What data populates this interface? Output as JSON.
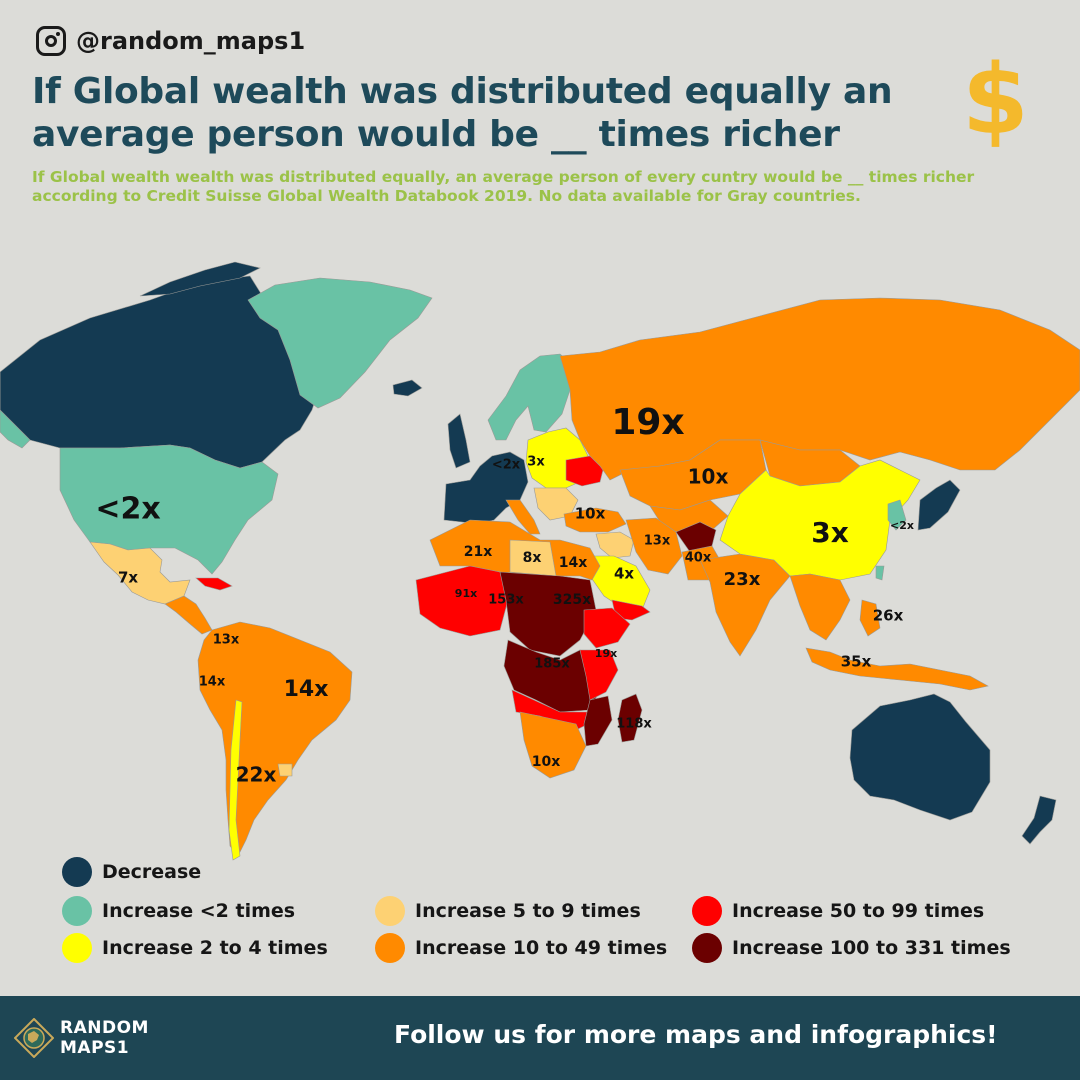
{
  "header": {
    "handle": "@random_maps1",
    "title_line1": "If Global wealth was distributed equally an",
    "title_line2": "average person would be __ times richer",
    "dollar_symbol": "$",
    "subtitle": "If Global wealth wealth was distributed equally, an average person of every cuntry would be __ times richer according to Credit Suisse Global Wealth Databook 2019. No data available for Gray countries."
  },
  "icons": {
    "instagram": "instagram-icon",
    "logo": "globe-logo-icon"
  },
  "colors": {
    "background": "#dcdcd8",
    "no_data": "#c9c9c5",
    "decrease": "#143a52",
    "increase_lt2": "#69c2a5",
    "increase_2_4": "#ffff00",
    "increase_5_9": "#fdd173",
    "increase_10_49": "#ff8a00",
    "increase_50_99": "#ff0000",
    "increase_100_331": "#6b0000",
    "title": "#1e4a5a",
    "subtitle": "#9bc248",
    "dollar": "#f4b92c",
    "footer": "#1e4654"
  },
  "map_labels": [
    {
      "id": "usa",
      "text": "<2x"
    },
    {
      "id": "mexico",
      "text": "7x"
    },
    {
      "id": "colombia",
      "text": "13x"
    },
    {
      "id": "peru",
      "text": "14x"
    },
    {
      "id": "brazil",
      "text": "14x"
    },
    {
      "id": "argentina",
      "text": "22x"
    },
    {
      "id": "russia",
      "text": "19x"
    },
    {
      "id": "kazakhstan",
      "text": "10x"
    },
    {
      "id": "china",
      "text": "3x"
    },
    {
      "id": "korea",
      "text": "<2x"
    },
    {
      "id": "india",
      "text": "23x"
    },
    {
      "id": "pakistan",
      "text": "40x"
    },
    {
      "id": "iran",
      "text": "13x"
    },
    {
      "id": "saudi",
      "text": "4x"
    },
    {
      "id": "turkey",
      "text": "10x"
    },
    {
      "id": "germany",
      "text": "<2x"
    },
    {
      "id": "poland",
      "text": "3x"
    },
    {
      "id": "algeria",
      "text": "21x"
    },
    {
      "id": "libya",
      "text": "8x"
    },
    {
      "id": "egypt",
      "text": "14x"
    },
    {
      "id": "mali",
      "text": "91x"
    },
    {
      "id": "niger",
      "text": "153x"
    },
    {
      "id": "chad",
      "text": "325x"
    },
    {
      "id": "drc",
      "text": "185x"
    },
    {
      "id": "kenya",
      "text": "19x"
    },
    {
      "id": "madagascar",
      "text": "118x"
    },
    {
      "id": "south_africa",
      "text": "10x"
    },
    {
      "id": "philippines",
      "text": "26x"
    },
    {
      "id": "indonesia",
      "text": "35x"
    }
  ],
  "legend": [
    {
      "label": "Decrease",
      "color": "#143a52"
    },
    {
      "label": "Increase <2 times",
      "color": "#69c2a5"
    },
    {
      "label": "Increase 2 to 4 times",
      "color": "#ffff00"
    },
    {
      "label": "Increase 5 to 9 times",
      "color": "#fdd173"
    },
    {
      "label": "Increase 10 to 49 times",
      "color": "#ff8a00"
    },
    {
      "label": "Increase 50 to 99 times",
      "color": "#ff0000"
    },
    {
      "label": "Increase 100 to 331 times",
      "color": "#6b0000"
    }
  ],
  "footer": {
    "logo_text": "RANDOM\nMAPS1",
    "cta": "Follow us for more maps and infographics!"
  }
}
